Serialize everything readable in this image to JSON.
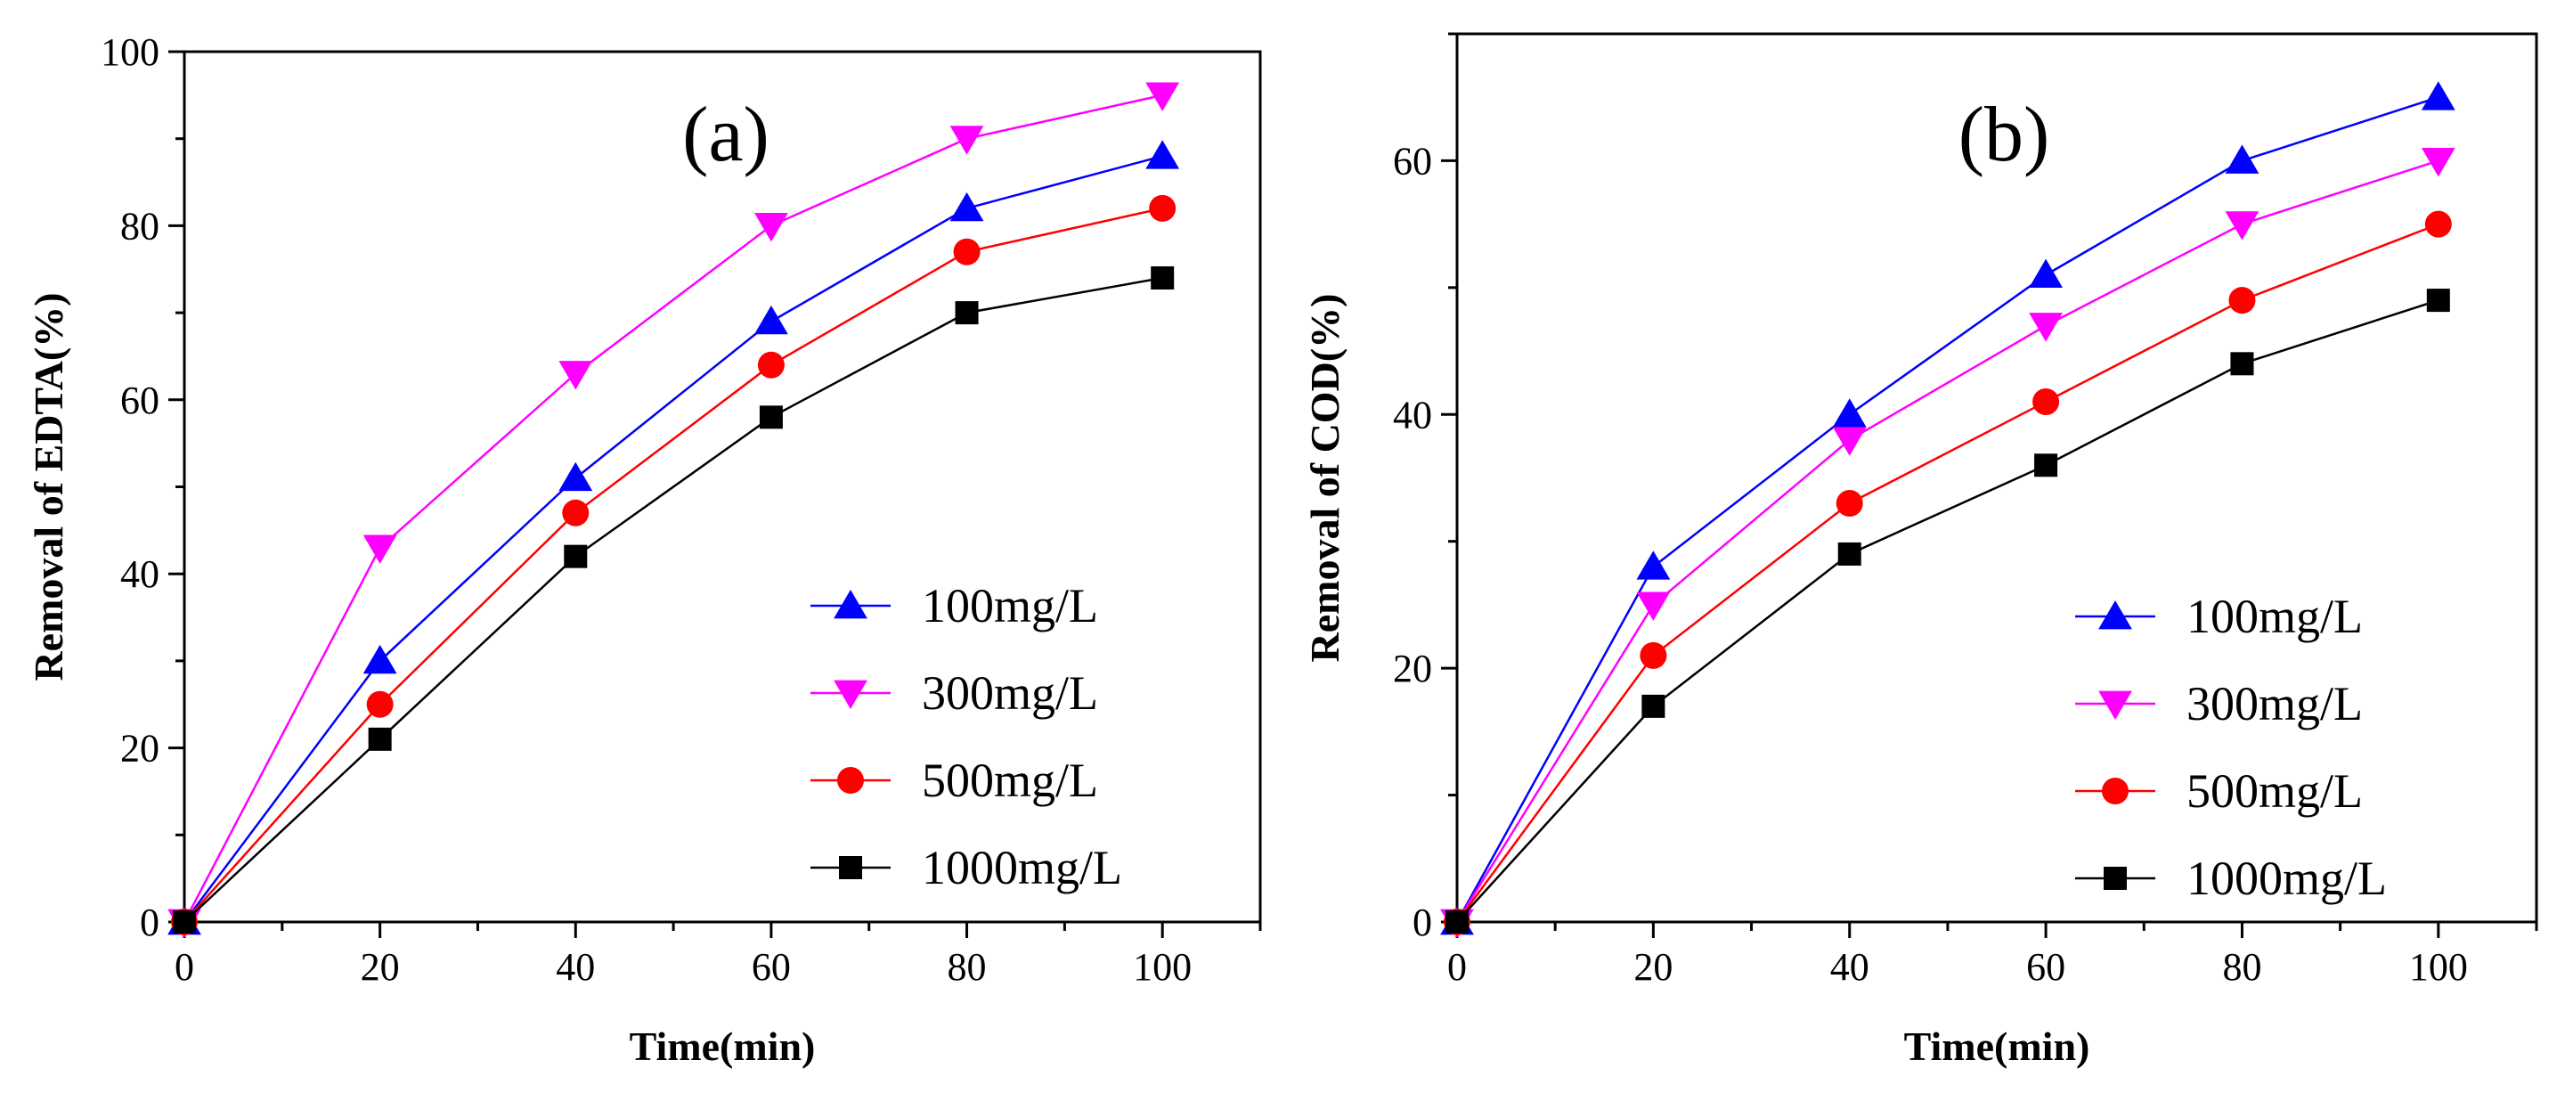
{
  "figure_title": "",
  "chart_data": [
    {
      "type": "line",
      "panel_label": "(a)",
      "title": "",
      "xlabel": "Time(min)",
      "ylabel": "Removal of EDTA(%)",
      "xlim": [
        0,
        110
      ],
      "ylim": [
        0,
        100
      ],
      "xticks": [
        0,
        20,
        40,
        60,
        80,
        100
      ],
      "yticks": [
        0,
        20,
        40,
        60,
        80,
        100
      ],
      "x": [
        0,
        20,
        40,
        60,
        80,
        100
      ],
      "legend_position": "center-right",
      "series": [
        {
          "name": "100mg/L",
          "marker": "triangle-up",
          "color": "#0000FF",
          "values": [
            0,
            30,
            51,
            69,
            82,
            88
          ]
        },
        {
          "name": "300mg/L",
          "marker": "triangle-down",
          "color": "#FF00FF",
          "values": [
            0,
            43,
            63,
            80,
            90,
            95
          ]
        },
        {
          "name": "500mg/L",
          "marker": "circle",
          "color": "#FF0000",
          "values": [
            0,
            25,
            47,
            64,
            77,
            82
          ]
        },
        {
          "name": "1000mg/L",
          "marker": "square",
          "color": "#000000",
          "values": [
            0,
            21,
            42,
            58,
            70,
            74
          ]
        }
      ]
    },
    {
      "type": "line",
      "panel_label": "(b)",
      "title": "",
      "xlabel": "Time(min)",
      "ylabel": "Removal of COD(%)",
      "xlim": [
        0,
        110
      ],
      "ylim": [
        0,
        70
      ],
      "xticks": [
        0,
        20,
        40,
        60,
        80,
        100
      ],
      "yticks": [
        0,
        20,
        40,
        60
      ],
      "x": [
        0,
        20,
        40,
        60,
        80,
        100
      ],
      "legend_position": "center-right",
      "series": [
        {
          "name": "100mg/L",
          "marker": "triangle-up",
          "color": "#0000FF",
          "values": [
            0,
            28,
            40,
            51,
            60,
            65
          ]
        },
        {
          "name": "300mg/L",
          "marker": "triangle-down",
          "color": "#FF00FF",
          "values": [
            0,
            25,
            38,
            47,
            55,
            60
          ]
        },
        {
          "name": "500mg/L",
          "marker": "circle",
          "color": "#FF0000",
          "values": [
            0,
            21,
            33,
            41,
            49,
            55
          ]
        },
        {
          "name": "1000mg/L",
          "marker": "square",
          "color": "#000000",
          "values": [
            0,
            17,
            29,
            36,
            44,
            49
          ]
        }
      ]
    }
  ]
}
